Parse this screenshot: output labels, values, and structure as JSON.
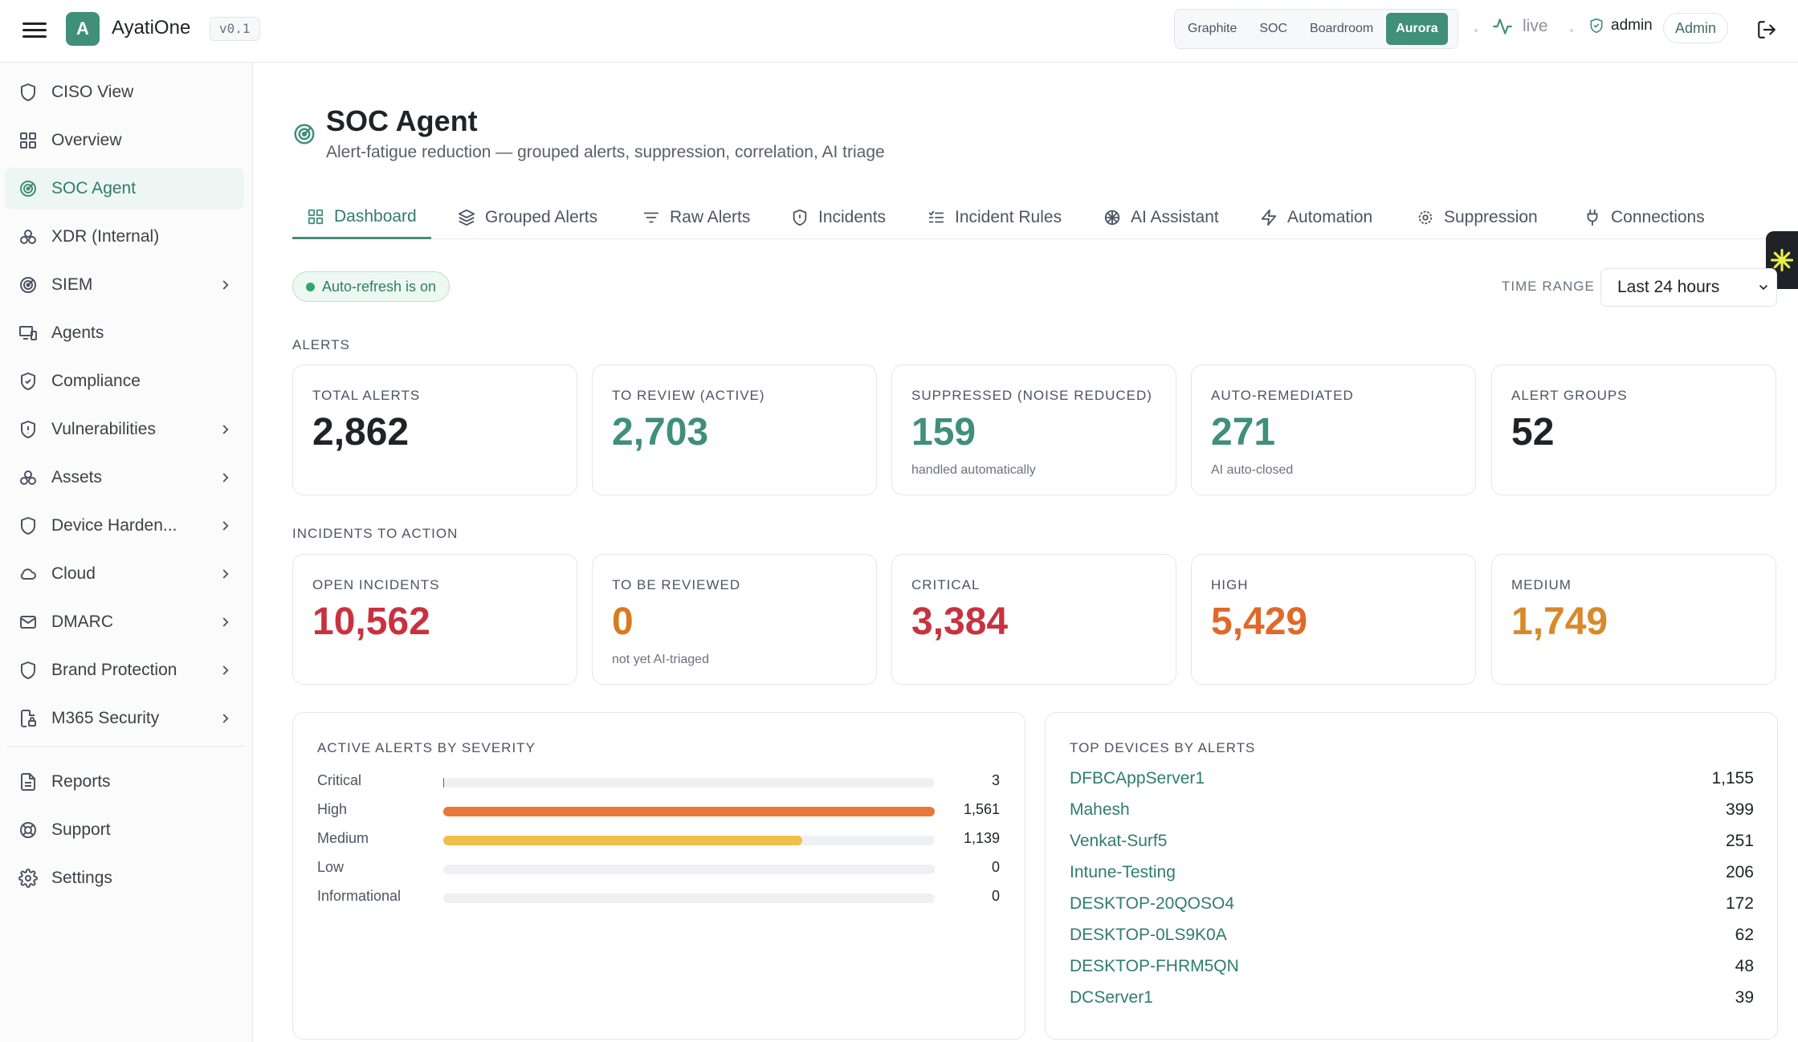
{
  "app": {
    "name": "AyatiOne",
    "logo_letter": "A",
    "version": "v0.1",
    "themes": [
      "Graphite",
      "SOC",
      "Boardroom",
      "Aurora"
    ],
    "active_theme": "Aurora",
    "live_label": "live",
    "user": "admin",
    "role_badge": "Admin",
    "accent_color": "#3f8f79"
  },
  "sidebar": {
    "items": [
      {
        "label": "CISO View",
        "icon": "shield-icon"
      },
      {
        "label": "Overview",
        "icon": "grid-icon"
      },
      {
        "label": "SOC Agent",
        "icon": "radar-icon",
        "active": true
      },
      {
        "label": "XDR (Internal)",
        "icon": "biohazard-icon"
      },
      {
        "label": "SIEM",
        "icon": "radar-icon",
        "has_children": true
      },
      {
        "label": "Agents",
        "icon": "devices-icon"
      },
      {
        "label": "Compliance",
        "icon": "shield-check-icon"
      },
      {
        "label": "Vulnerabilities",
        "icon": "shield-alert-icon",
        "has_children": true
      },
      {
        "label": "Assets",
        "icon": "biohazard-icon",
        "has_children": true
      },
      {
        "label": "Device Harden...",
        "icon": "shield-icon",
        "has_children": true
      },
      {
        "label": "Cloud",
        "icon": "cloud-icon",
        "has_children": true
      },
      {
        "label": "DMARC",
        "icon": "mail-icon",
        "has_children": true
      },
      {
        "label": "Brand Protection",
        "icon": "shield-icon",
        "has_children": true
      },
      {
        "label": "M365 Security",
        "icon": "file-lock-icon",
        "has_children": true
      }
    ],
    "footer_items": [
      {
        "label": "Reports",
        "icon": "file-text-icon"
      },
      {
        "label": "Support",
        "icon": "life-buoy-icon"
      },
      {
        "label": "Settings",
        "icon": "gear-icon"
      }
    ]
  },
  "page": {
    "title": "SOC Agent",
    "subtitle": "Alert-fatigue reduction — grouped alerts, suppression, correlation, AI triage"
  },
  "tabs": [
    {
      "label": "Dashboard",
      "icon": "grid-icon",
      "active": true
    },
    {
      "label": "Grouped Alerts",
      "icon": "layers-icon"
    },
    {
      "label": "Raw Alerts",
      "icon": "filter-icon"
    },
    {
      "label": "Incidents",
      "icon": "shield-alert-icon"
    },
    {
      "label": "Incident Rules",
      "icon": "list-check-icon"
    },
    {
      "label": "AI Assistant",
      "icon": "brain-icon"
    },
    {
      "label": "Automation",
      "icon": "zap-icon"
    },
    {
      "label": "Suppression",
      "icon": "gear-icon"
    },
    {
      "label": "Connections",
      "icon": "plug-icon"
    }
  ],
  "controls": {
    "auto_refresh": "Auto-refresh is on",
    "time_range_label": "TIME RANGE",
    "time_range_value": "Last 24 hours"
  },
  "alerts_section": {
    "label": "ALERTS",
    "cards": [
      {
        "label": "TOTAL ALERTS",
        "value": "2,862",
        "note": "",
        "color": "#1f2328"
      },
      {
        "label": "TO REVIEW (ACTIVE)",
        "value": "2,703",
        "note": "",
        "color": "#3f8f79"
      },
      {
        "label": "SUPPRESSED (NOISE REDUCED)",
        "value": "159",
        "note": "handled automatically",
        "color": "#3f8f79"
      },
      {
        "label": "AUTO-REMEDIATED",
        "value": "271",
        "note": "AI auto-closed",
        "color": "#3f8f79"
      },
      {
        "label": "ALERT GROUPS",
        "value": "52",
        "note": "",
        "color": "#1f2328"
      }
    ]
  },
  "incidents_section": {
    "label": "INCIDENTS TO ACTION",
    "cards": [
      {
        "label": "OPEN INCIDENTS",
        "value": "10,562",
        "note": "",
        "color": "#c8323f"
      },
      {
        "label": "TO BE REVIEWED",
        "value": "0",
        "note": "not yet AI-triaged",
        "color": "#d97a1e"
      },
      {
        "label": "CRITICAL",
        "value": "3,384",
        "note": "",
        "color": "#c8323f"
      },
      {
        "label": "HIGH",
        "value": "5,429",
        "note": "",
        "color": "#e0692a"
      },
      {
        "label": "MEDIUM",
        "value": "1,749",
        "note": "",
        "color": "#d9892a"
      }
    ]
  },
  "severity_panel": {
    "title": "ACTIVE ALERTS BY SEVERITY",
    "max": 1561,
    "rows": [
      {
        "name": "Critical",
        "count": "3",
        "value": 3,
        "color": "#c8323f"
      },
      {
        "name": "High",
        "count": "1,561",
        "value": 1561,
        "color": "#e8773a"
      },
      {
        "name": "Medium",
        "count": "1,139",
        "value": 1139,
        "color": "#f0be4a"
      },
      {
        "name": "Low",
        "count": "0",
        "value": 0,
        "color": "#4aa3d9"
      },
      {
        "name": "Informational",
        "count": "0",
        "value": 0,
        "color": "#9aa3ad"
      }
    ]
  },
  "devices_panel": {
    "title": "TOP DEVICES BY ALERTS",
    "rows": [
      {
        "name": "DFBCAppServer1",
        "count": "1,155"
      },
      {
        "name": "Mahesh",
        "count": "399"
      },
      {
        "name": "Venkat-Surf5",
        "count": "251"
      },
      {
        "name": "Intune-Testing",
        "count": "206"
      },
      {
        "name": "DESKTOP-20QOSO4",
        "count": "172"
      },
      {
        "name": "DESKTOP-0LS9K0A",
        "count": "62"
      },
      {
        "name": "DESKTOP-FHRM5QN",
        "count": "48"
      },
      {
        "name": "DCServer1",
        "count": "39"
      }
    ]
  }
}
